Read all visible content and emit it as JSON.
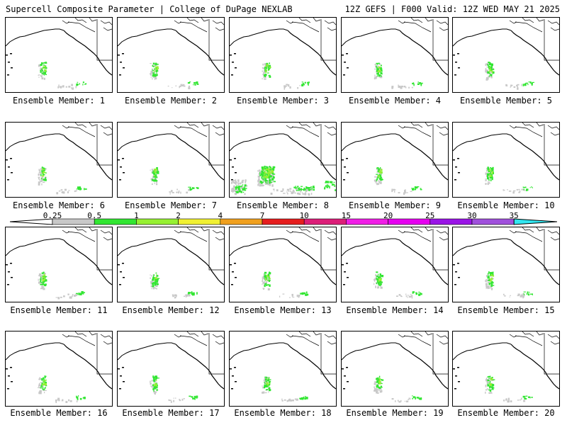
{
  "header": {
    "left": "Supercell Composite Parameter | College of DuPage NEXLAB",
    "right": "12Z GEFS | F000 Valid: 12Z WED MAY 21 2025"
  },
  "panels": [
    {
      "label": "Ensemble Member: 1"
    },
    {
      "label": "Ensemble Member: 2"
    },
    {
      "label": "Ensemble Member: 3"
    },
    {
      "label": "Ensemble Member: 4"
    },
    {
      "label": "Ensemble Member: 5"
    },
    {
      "label": "Ensemble Member: 6"
    },
    {
      "label": "Ensemble Member: 7"
    },
    {
      "label": "Ensemble Member: 8"
    },
    {
      "label": "Ensemble Member: 9"
    },
    {
      "label": "Ensemble Member: 10"
    },
    {
      "label": "Ensemble Member: 11"
    },
    {
      "label": "Ensemble Member: 12"
    },
    {
      "label": "Ensemble Member: 13"
    },
    {
      "label": "Ensemble Member: 14"
    },
    {
      "label": "Ensemble Member: 15"
    },
    {
      "label": "Ensemble Member: 16"
    },
    {
      "label": "Ensemble Member: 17"
    },
    {
      "label": "Ensemble Member: 18"
    },
    {
      "label": "Ensemble Member: 19"
    },
    {
      "label": "Ensemble Member: 20"
    }
  ],
  "legend": {
    "thresholds": [
      "0.25",
      "0.5",
      "1",
      "2",
      "4",
      "7",
      "10",
      "15",
      "20",
      "25",
      "30",
      "35"
    ],
    "colors": [
      "#c8c8c8",
      "#32e632",
      "#96f032",
      "#f0f032",
      "#f0a01e",
      "#e61e1e",
      "#dc1e78",
      "#f01ee6",
      "#e600f0",
      "#9a14e6",
      "#a050dc",
      "#32e6f0"
    ]
  }
}
